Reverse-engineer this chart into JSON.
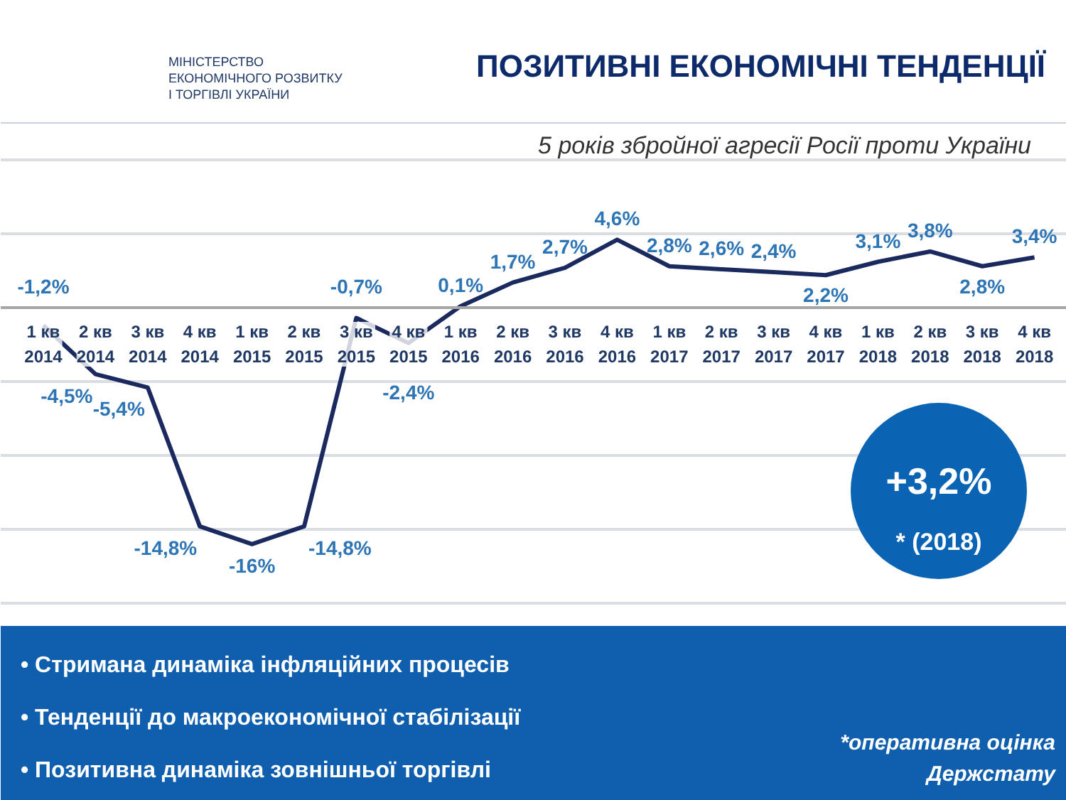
{
  "chart_data": {
    "type": "line",
    "title": "ПОЗИТИВНІ ЕКОНОМІЧНІ ТЕНДЕНЦІЇ",
    "subtitle": "5 років збройної агресії Росії проти України",
    "categories": [
      "1 кв 2014",
      "2 кв 2014",
      "3 кв 2014",
      "4 кв 2014",
      "1 кв 2015",
      "2 кв 2015",
      "3 кв 2015",
      "4 кв 2015",
      "1 кв 2016",
      "2 кв 2016",
      "3 кв 2016",
      "4 кв 2016",
      "1 кв 2017",
      "2 кв 2017",
      "3 кв 2017",
      "4 кв 2017",
      "1 кв 2018",
      "2 кв 2018",
      "3 кв 2018",
      "4 кв 2018"
    ],
    "series": [
      {
        "color": "#1b2a5e",
        "values": [
          -1.2,
          -4.5,
          -5.4,
          -14.8,
          -16,
          -14.8,
          -0.7,
          -2.4,
          0.1,
          1.7,
          2.7,
          4.6,
          2.8,
          2.6,
          2.4,
          2.2,
          3.1,
          3.8,
          2.8,
          3.4
        ],
        "value_labels": [
          "-1,2%",
          "-4,5%",
          "-5,4%",
          "-14,8%",
          "-16%",
          "-14,8%",
          "-0,7%",
          "-2,4%",
          "0,1%",
          "1,7%",
          "2,7%",
          "4,6%",
          "2,8%",
          "2,6%",
          "2,4%",
          "2,2%",
          "3,1%",
          "3,8%",
          "2,8%",
          "3,4%"
        ]
      }
    ],
    "ylim": [
      -20,
      10
    ],
    "yticks": [
      {
        "value": -20,
        "label": null
      },
      {
        "value": -15,
        "label": null
      },
      {
        "value": -10,
        "label": null
      },
      {
        "value": -5,
        "label": null
      },
      {
        "value": 0,
        "label": null
      },
      {
        "value": 5,
        "label": null
      },
      {
        "value": 10,
        "label": null
      }
    ],
    "tick_labels": "x",
    "grid": "y",
    "marker": "none",
    "line_style": "solid",
    "annotations": [
      "МІНІСТЕРСТВО\nЕКОНОМІЧНОГО РОЗВИТКУ\nІ ТОРГІВЛІ УКРАЇНИ",
      "+3,2%",
      "* (2018)",
      "• Стримана динаміка інфляційних процесів",
      "• Тенденції до макроекономічної стабілізації",
      "• Позитивна динаміка зовнішньої торгівлі",
      "*оперативна оцінка\nДержстату"
    ]
  }
}
